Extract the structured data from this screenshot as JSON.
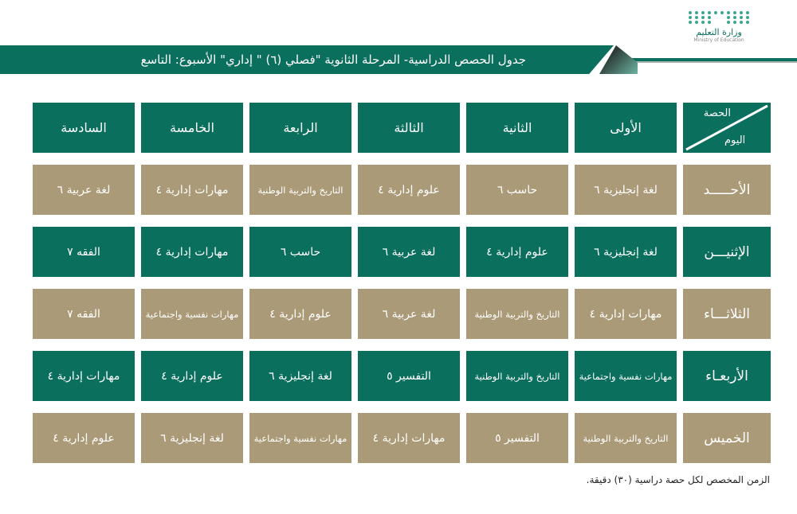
{
  "logo": {
    "name_ar": "وزارة التعليم",
    "name_en": "Ministry of Education"
  },
  "title": "جدول الحصص الدراسية- المرحلة الثانوية \"فصلي (٦) \" إداري\" الأسبوع: التاسع",
  "colors": {
    "green": "#0b6f5d",
    "tan": "#ab9a78"
  },
  "corner": {
    "period": "الحصة",
    "day": "اليوم"
  },
  "periods": [
    "الأولى",
    "الثانية",
    "الثالثة",
    "الرابعة",
    "الخامسة",
    "السادسة"
  ],
  "rows": [
    {
      "day": "الأحـــــد",
      "cells": [
        "لغة إنجليزية ٦",
        "حاسب ٦",
        "علوم إدارية ٤",
        "التاريخ والتربية الوطنية",
        "مهارات إدارية ٤",
        "لغة عربية ٦"
      ]
    },
    {
      "day": "الإثنيـــن",
      "cells": [
        "لغة إنجليزية ٦",
        "علوم إدارية ٤",
        "لغة عربية ٦",
        "حاسب ٦",
        "مهارات إدارية ٤",
        "الفقه ٧"
      ]
    },
    {
      "day": "الثلاثـــاء",
      "cells": [
        "مهارات إدارية ٤",
        "التاريخ والتربية الوطنية",
        "لغة عربية ٦",
        "علوم إدارية ٤",
        "مهارات نفسية واجتماعية",
        "الفقه ٧"
      ]
    },
    {
      "day": "الأربعـاء",
      "cells": [
        "مهارات نفسية واجتماعية",
        "التاريخ والتربية الوطنية",
        "التفسير ٥",
        "لغة إنجليزية ٦",
        "علوم إدارية ٤",
        "مهارات إدارية ٤"
      ]
    },
    {
      "day": "الخميس",
      "cells": [
        "التاريخ والتربية الوطنية",
        "التفسير ٥",
        "مهارات إدارية ٤",
        "مهارات نفسية واجتماعية",
        "لغة إنجليزية ٦",
        "علوم إدارية ٤"
      ]
    }
  ],
  "footer": "الزمن المخصص لكل حصة دراسية (٣٠) دقيقة."
}
